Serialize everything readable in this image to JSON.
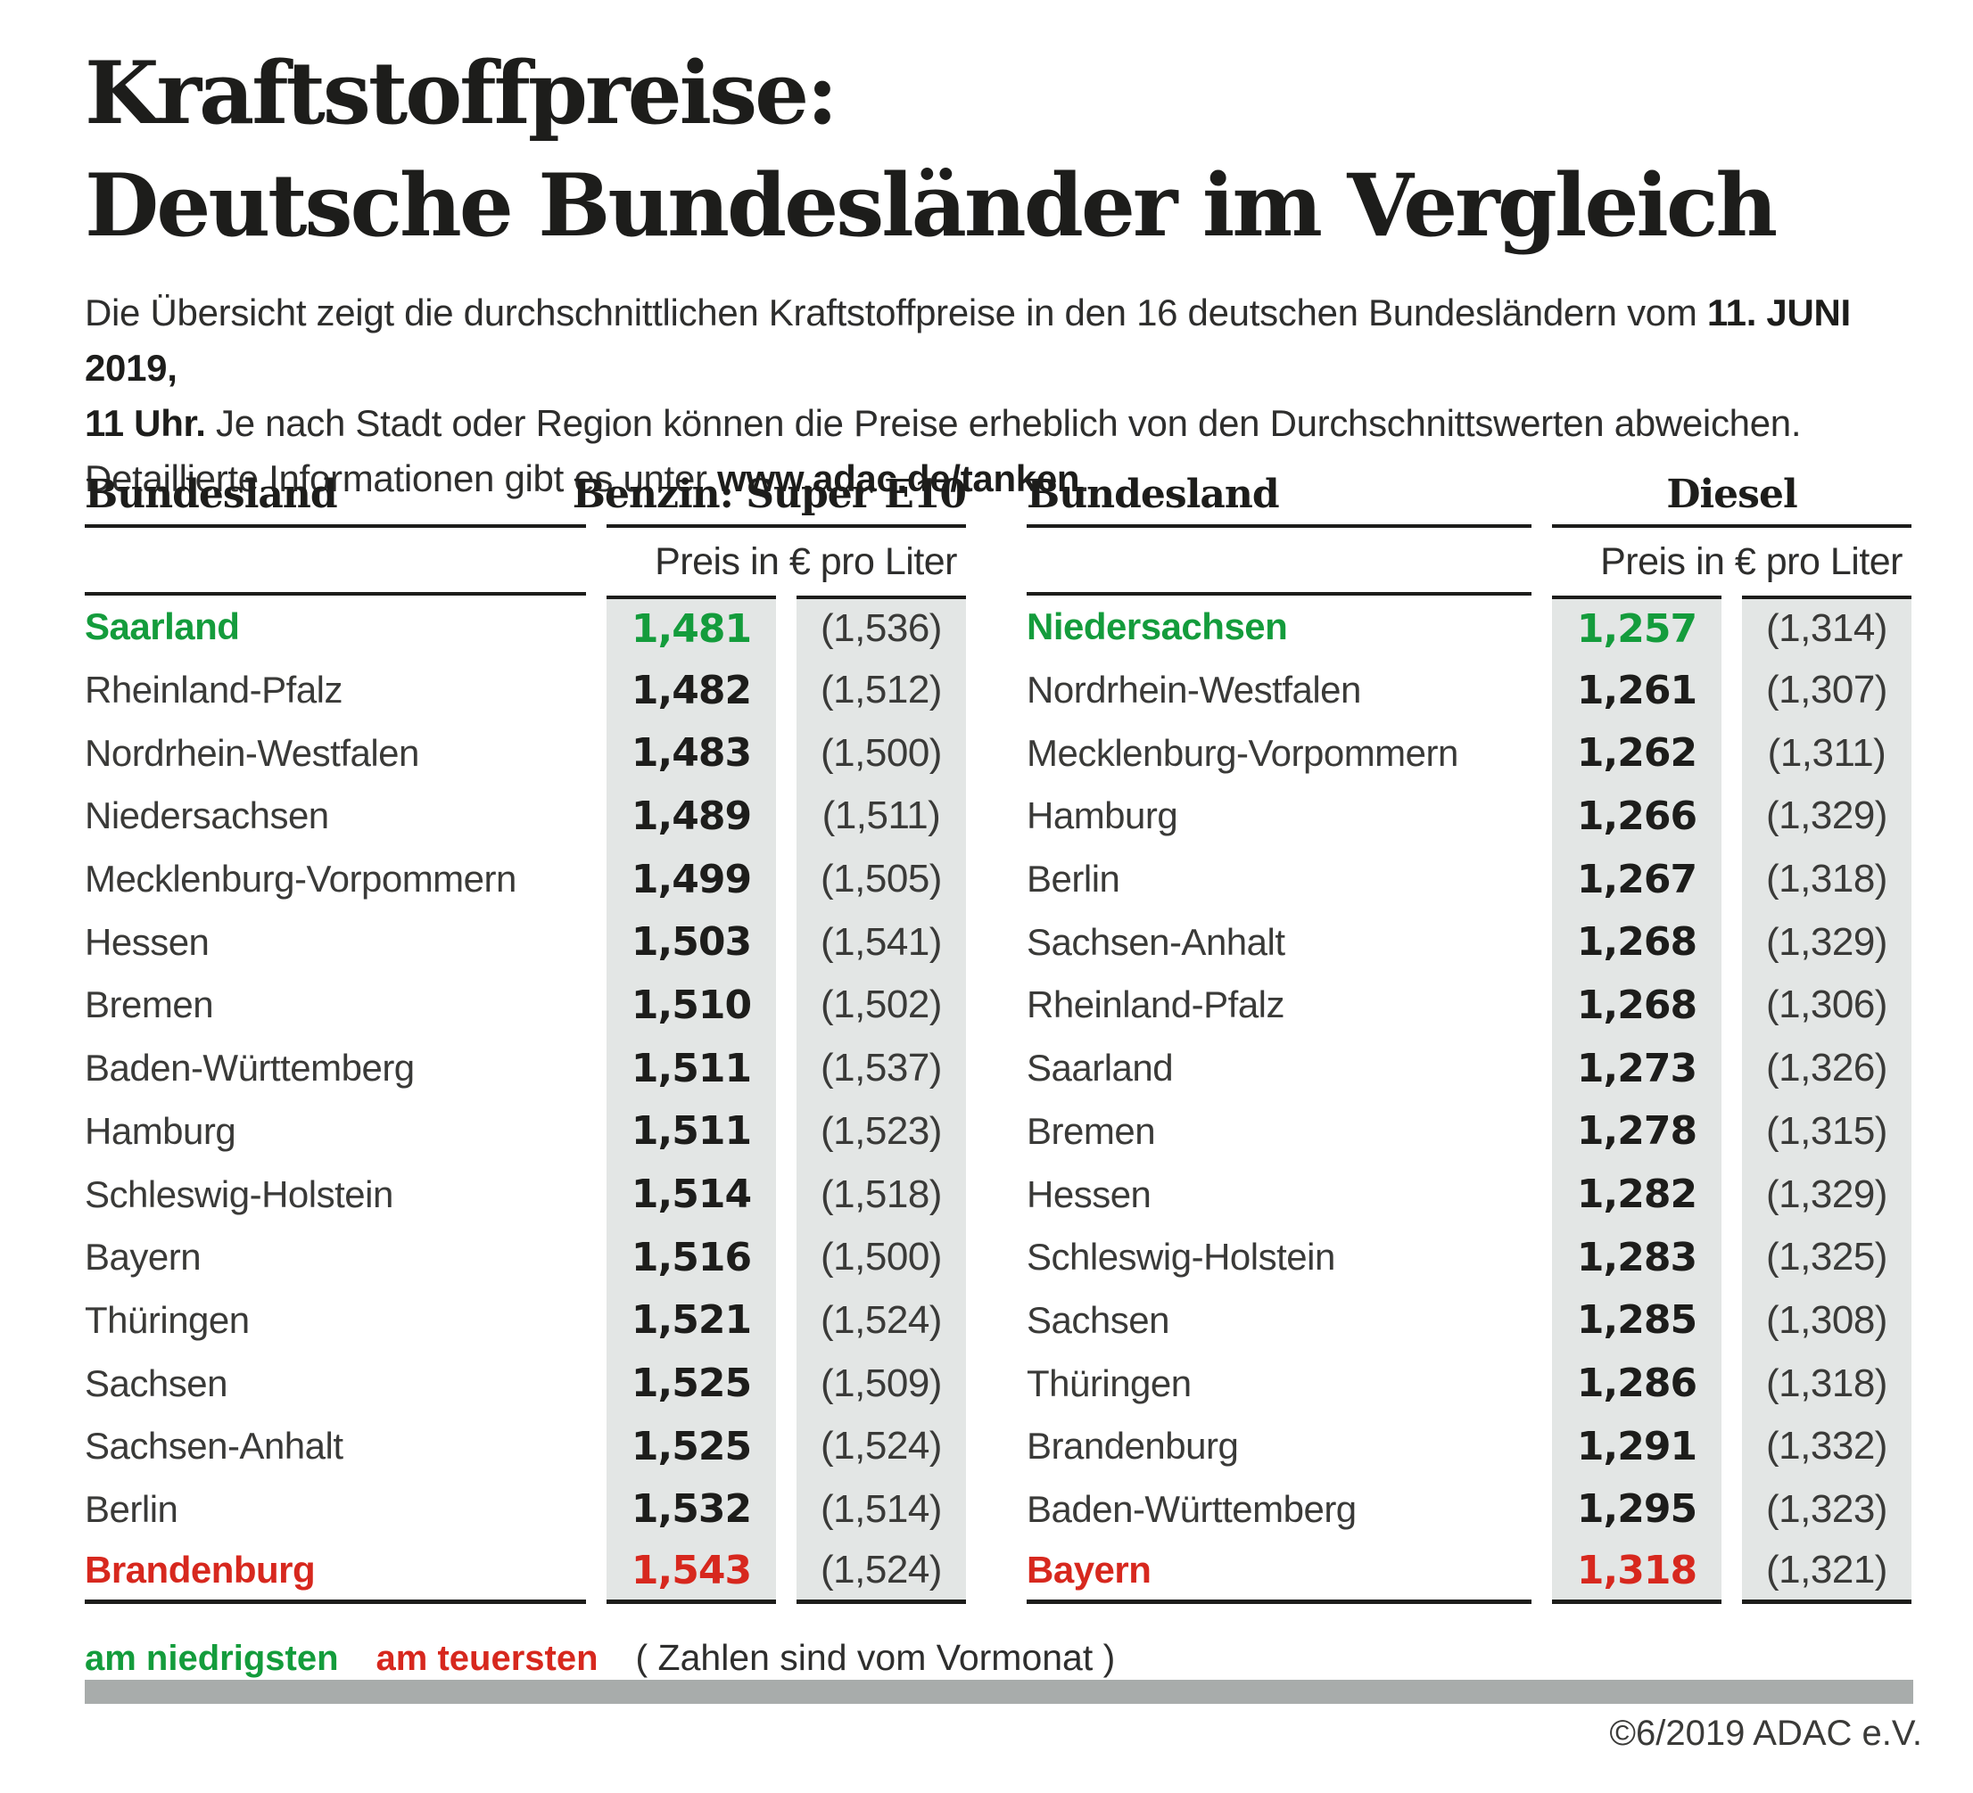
{
  "title": {
    "line1": "Kraftstoffpreise:",
    "line2": "Deutsche Bundesländer im Vergleich"
  },
  "intro": {
    "lines": [
      [
        {
          "text": "Die Übersicht zeigt die durchschnittlichen Kraftstoffpreise in den 16 deutschen Bundesländern vom ",
          "bold": false
        },
        {
          "text": "11. JUNI 2019,",
          "bold": true
        }
      ],
      [
        {
          "text": "11 Uhr.",
          "bold": true
        },
        {
          "text": " Je nach Stadt oder Region können die Preise erheblich von den Durchschnittswerten abweichen.",
          "bold": false
        }
      ],
      [
        {
          "text": "Detaillierte Informationen gibt es unter ",
          "bold": false
        },
        {
          "text": "www.adac.de/tanken",
          "bold": true
        },
        {
          "text": ".",
          "bold": false
        }
      ]
    ]
  },
  "tables": [
    {
      "id": "benzin",
      "region_header": "Bundesland",
      "fuel_header": "Benzin:  Super E10",
      "unit_header": "Preis in € pro Liter",
      "rows": [
        {
          "name": "Saarland",
          "price": "1,481",
          "prev": "(1,536)",
          "highlight": "lowest"
        },
        {
          "name": "Rheinland-Pfalz",
          "price": "1,482",
          "prev": "(1,512)",
          "highlight": null
        },
        {
          "name": "Nordrhein-Westfalen",
          "price": "1,483",
          "prev": "(1,500)",
          "highlight": null
        },
        {
          "name": "Niedersachsen",
          "price": "1,489",
          "prev": "(1,511)",
          "highlight": null
        },
        {
          "name": "Mecklenburg-Vorpommern",
          "price": "1,499",
          "prev": "(1,505)",
          "highlight": null
        },
        {
          "name": "Hessen",
          "price": "1,503",
          "prev": "(1,541)",
          "highlight": null
        },
        {
          "name": "Bremen",
          "price": "1,510",
          "prev": "(1,502)",
          "highlight": null
        },
        {
          "name": "Baden-Württemberg",
          "price": "1,511",
          "prev": "(1,537)",
          "highlight": null
        },
        {
          "name": "Hamburg",
          "price": "1,511",
          "prev": "(1,523)",
          "highlight": null
        },
        {
          "name": "Schleswig-Holstein",
          "price": "1,514",
          "prev": "(1,518)",
          "highlight": null
        },
        {
          "name": "Bayern",
          "price": "1,516",
          "prev": "(1,500)",
          "highlight": null
        },
        {
          "name": "Thüringen",
          "price": "1,521",
          "prev": "(1,524)",
          "highlight": null
        },
        {
          "name": "Sachsen",
          "price": "1,525",
          "prev": "(1,509)",
          "highlight": null
        },
        {
          "name": "Sachsen-Anhalt",
          "price": "1,525",
          "prev": "(1,524)",
          "highlight": null
        },
        {
          "name": "Berlin",
          "price": "1,532",
          "prev": "(1,514)",
          "highlight": null
        },
        {
          "name": "Brandenburg",
          "price": "1,543",
          "prev": "(1,524)",
          "highlight": "highest"
        }
      ]
    },
    {
      "id": "diesel",
      "region_header": "Bundesland",
      "fuel_header": "Diesel",
      "unit_header": "Preis in € pro Liter",
      "rows": [
        {
          "name": "Niedersachsen",
          "price": "1,257",
          "prev": "(1,314)",
          "highlight": "lowest"
        },
        {
          "name": "Nordrhein-Westfalen",
          "price": "1,261",
          "prev": "(1,307)",
          "highlight": null
        },
        {
          "name": "Mecklenburg-Vorpommern",
          "price": "1,262",
          "prev": "(1,311)",
          "highlight": null
        },
        {
          "name": "Hamburg",
          "price": "1,266",
          "prev": "(1,329)",
          "highlight": null
        },
        {
          "name": "Berlin",
          "price": "1,267",
          "prev": "(1,318)",
          "highlight": null
        },
        {
          "name": "Sachsen-Anhalt",
          "price": "1,268",
          "prev": "(1,329)",
          "highlight": null
        },
        {
          "name": "Rheinland-Pfalz",
          "price": "1,268",
          "prev": "(1,306)",
          "highlight": null
        },
        {
          "name": "Saarland",
          "price": "1,273",
          "prev": "(1,326)",
          "highlight": null
        },
        {
          "name": "Bremen",
          "price": "1,278",
          "prev": "(1,315)",
          "highlight": null
        },
        {
          "name": "Hessen",
          "price": "1,282",
          "prev": "(1,329)",
          "highlight": null
        },
        {
          "name": "Schleswig-Holstein",
          "price": "1,283",
          "prev": "(1,325)",
          "highlight": null
        },
        {
          "name": "Sachsen",
          "price": "1,285",
          "prev": "(1,308)",
          "highlight": null
        },
        {
          "name": "Thüringen",
          "price": "1,286",
          "prev": "(1,318)",
          "highlight": null
        },
        {
          "name": "Brandenburg",
          "price": "1,291",
          "prev": "(1,332)",
          "highlight": null
        },
        {
          "name": "Baden-Württemberg",
          "price": "1,295",
          "prev": "(1,323)",
          "highlight": null
        },
        {
          "name": "Bayern",
          "price": "1,318",
          "prev": "(1,321)",
          "highlight": "highest"
        }
      ]
    }
  ],
  "legend": {
    "lowest": "am niedrigsten",
    "highest": "am teuersten",
    "note": "( Zahlen sind vom Vormonat )"
  },
  "footer": {
    "copyright": "©6/2019 ADAC e.V."
  },
  "colors": {
    "lowest": "#149c3c",
    "highest": "#d7281e",
    "ink": "#1d1d1b",
    "body": "#3a3a38",
    "band": "#e3e6e5",
    "bar": "#a8acab"
  },
  "chart_data": [
    {
      "type": "table",
      "title": "Benzin: Super E10 — Preis in € pro Liter (11. Juni 2019, 11 Uhr)",
      "columns": [
        "Bundesland",
        "Preis",
        "Vormonat"
      ],
      "categories": [
        "Saarland",
        "Rheinland-Pfalz",
        "Nordrhein-Westfalen",
        "Niedersachsen",
        "Mecklenburg-Vorpommern",
        "Hessen",
        "Bremen",
        "Baden-Württemberg",
        "Hamburg",
        "Schleswig-Holstein",
        "Bayern",
        "Thüringen",
        "Sachsen",
        "Sachsen-Anhalt",
        "Berlin",
        "Brandenburg"
      ],
      "series": [
        {
          "name": "Preis in € pro Liter",
          "values": [
            1.481,
            1.482,
            1.483,
            1.489,
            1.499,
            1.503,
            1.51,
            1.511,
            1.511,
            1.514,
            1.516,
            1.521,
            1.525,
            1.525,
            1.532,
            1.543
          ]
        },
        {
          "name": "Vormonat",
          "values": [
            1.536,
            1.512,
            1.5,
            1.511,
            1.505,
            1.541,
            1.502,
            1.537,
            1.523,
            1.518,
            1.5,
            1.524,
            1.509,
            1.524,
            1.514,
            1.524
          ]
        }
      ],
      "annotations": {
        "lowest": "Saarland",
        "highest": "Brandenburg"
      }
    },
    {
      "type": "table",
      "title": "Diesel — Preis in € pro Liter (11. Juni 2019, 11 Uhr)",
      "columns": [
        "Bundesland",
        "Preis",
        "Vormonat"
      ],
      "categories": [
        "Niedersachsen",
        "Nordrhein-Westfalen",
        "Mecklenburg-Vorpommern",
        "Hamburg",
        "Berlin",
        "Sachsen-Anhalt",
        "Rheinland-Pfalz",
        "Saarland",
        "Bremen",
        "Hessen",
        "Schleswig-Holstein",
        "Sachsen",
        "Thüringen",
        "Brandenburg",
        "Baden-Württemberg",
        "Bayern"
      ],
      "series": [
        {
          "name": "Preis in € pro Liter",
          "values": [
            1.257,
            1.261,
            1.262,
            1.266,
            1.267,
            1.268,
            1.268,
            1.273,
            1.278,
            1.282,
            1.283,
            1.285,
            1.286,
            1.291,
            1.295,
            1.318
          ]
        },
        {
          "name": "Vormonat",
          "values": [
            1.314,
            1.307,
            1.311,
            1.329,
            1.318,
            1.329,
            1.306,
            1.326,
            1.315,
            1.329,
            1.325,
            1.308,
            1.318,
            1.332,
            1.323,
            1.321
          ]
        }
      ],
      "annotations": {
        "lowest": "Niedersachsen",
        "highest": "Bayern"
      }
    }
  ]
}
